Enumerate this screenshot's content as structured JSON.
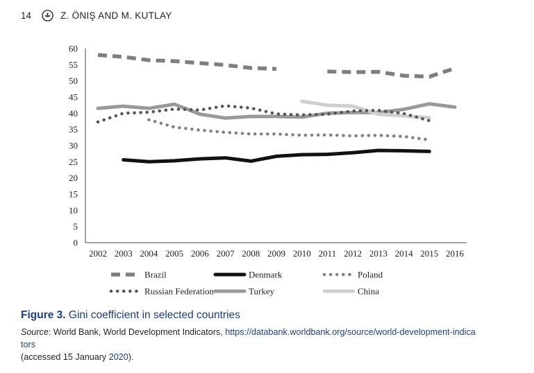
{
  "header": {
    "page_number": "14",
    "authors": "Z. ÖNIŞ AND M. KUTLAY",
    "logo_icon": "journal-logo-icon"
  },
  "figure": {
    "label": "Figure 3.",
    "title": "Gini coefficient in selected countries",
    "source_label": "Source",
    "source_text": ": World Bank, World Development Indicators, ",
    "source_url_line1": "https://databank.worldbank.org/source/world-development-indica",
    "source_url_line2": "tors",
    "source_accessed": " (accessed 15 January ",
    "source_year": "2020",
    "source_end": ")."
  },
  "chart_data": {
    "type": "line",
    "title": "",
    "xlabel": "",
    "ylabel": "",
    "x": [
      "2002",
      "2003",
      "2004",
      "2005",
      "2006",
      "2007",
      "2008",
      "2009",
      "2010",
      "2011",
      "2012",
      "2013",
      "2014",
      "2015",
      "2016"
    ],
    "ylim": [
      0,
      60
    ],
    "yticks": [
      0,
      5,
      10,
      15,
      20,
      25,
      30,
      35,
      40,
      45,
      50,
      55,
      60
    ],
    "grid": false,
    "legend_position": "bottom",
    "series": [
      {
        "name": "Brazil",
        "color": "#7f7f7f",
        "style": "dashed",
        "values": [
          58.0,
          57.4,
          56.4,
          56.1,
          55.5,
          54.9,
          54.0,
          53.7,
          null,
          52.9,
          52.7,
          52.8,
          51.6,
          51.3,
          53.9
        ]
      },
      {
        "name": "Denmark",
        "color": "#111111",
        "style": "solid",
        "values": [
          null,
          25.6,
          25.0,
          25.3,
          25.9,
          26.2,
          25.2,
          26.7,
          27.2,
          27.3,
          27.8,
          28.5,
          28.4,
          28.2,
          null
        ]
      },
      {
        "name": "Poland",
        "color": "#808080",
        "style": "dotted",
        "values": [
          null,
          null,
          38.0,
          35.7,
          34.8,
          34.1,
          33.6,
          33.6,
          33.2,
          33.3,
          33.0,
          33.2,
          32.8,
          31.8,
          null
        ]
      },
      {
        "name": "Russian Federation",
        "color": "#555555",
        "style": "dotted",
        "values": [
          37.3,
          40.0,
          40.3,
          41.3,
          41.0,
          42.3,
          41.6,
          39.8,
          39.5,
          39.7,
          40.7,
          40.9,
          39.9,
          37.7,
          null
        ]
      },
      {
        "name": "Turkey",
        "color": "#999999",
        "style": "solid",
        "values": [
          41.5,
          42.2,
          41.5,
          42.8,
          39.7,
          38.5,
          39.0,
          39.0,
          38.8,
          40.0,
          40.2,
          40.2,
          41.2,
          42.9,
          41.9
        ]
      },
      {
        "name": "China",
        "color": "#cfcfcf",
        "style": "solid",
        "values": [
          null,
          null,
          null,
          null,
          null,
          null,
          null,
          null,
          43.7,
          42.5,
          42.2,
          39.7,
          39.2,
          38.6,
          null
        ]
      }
    ]
  }
}
